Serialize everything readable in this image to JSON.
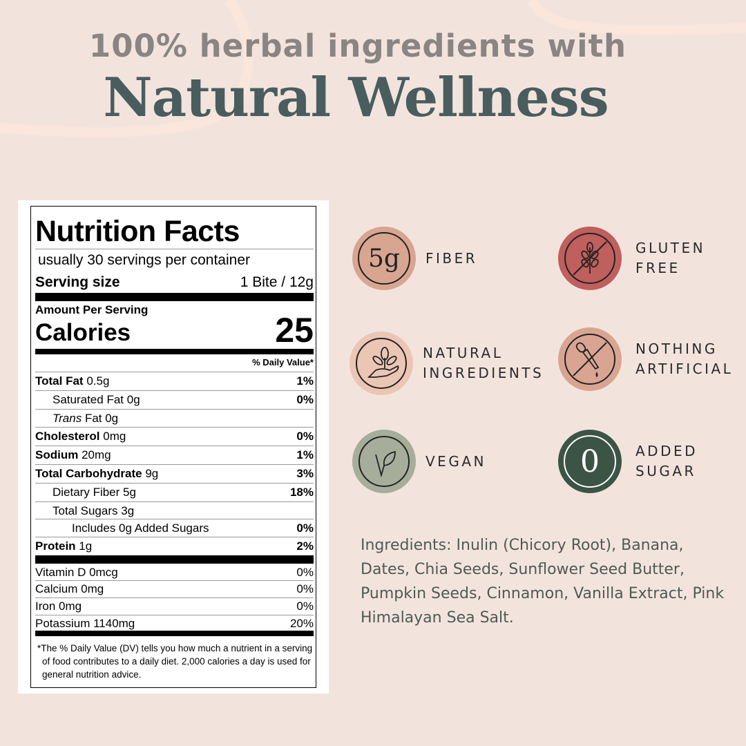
{
  "headline": {
    "line1": "100% herbal ingredients with",
    "line2": "Natural Wellness"
  },
  "nutrition": {
    "title": "Nutrition Facts",
    "servings": "usually 30 servings per container",
    "serving_size_label": "Serving size",
    "serving_size_value": "1 Bite / 12g",
    "amount_per_serving": "Amount Per Serving",
    "calories_label": "Calories",
    "calories_value": "25",
    "dv_header": "% Daily Value*",
    "rows": [
      {
        "label": "Total Fat",
        "amount": "0.5g",
        "dv": "1%"
      },
      {
        "label": "Saturated Fat",
        "amount": "0g",
        "dv": "0%"
      },
      {
        "label": "Trans",
        "amount": "Fat 0g",
        "dv": ""
      },
      {
        "label": "Cholesterol",
        "amount": "0mg",
        "dv": "0%"
      },
      {
        "label": "Sodium",
        "amount": "20mg",
        "dv": "1%"
      },
      {
        "label": "Total Carbohydrate",
        "amount": "9g",
        "dv": "3%"
      },
      {
        "label": "Dietary Fiber",
        "amount": "5g",
        "dv": "18%"
      },
      {
        "label": "Total Sugars",
        "amount": "3g",
        "dv": ""
      },
      {
        "label": "Includes 0g Added Sugars",
        "amount": "",
        "dv": "0%"
      },
      {
        "label": "Protein",
        "amount": "1g",
        "dv": "2%"
      }
    ],
    "vitamins": [
      {
        "label": "Vitamin D 0mcg",
        "dv": "0%"
      },
      {
        "label": "Calcium 0mg",
        "dv": "0%"
      },
      {
        "label": "Iron 0mg",
        "dv": "0%"
      },
      {
        "label": "Potassium 1140mg",
        "dv": "20%"
      }
    ],
    "footnote": "The % Daily Value (DV) tells you how much a nutrient in a serving of food contributes to a daily diet. 2,000 calories a day is used for general nutrition advice.",
    "footnote_mark": "*"
  },
  "features": [
    {
      "icon": "5g-text-icon",
      "badge": "5g",
      "line1": "FIBER",
      "line2": "",
      "color": "#d8a591"
    },
    {
      "icon": "no-wheat-icon",
      "badge": "",
      "line1": "GLUTEN",
      "line2": "FREE",
      "color": "#bf5f5e"
    },
    {
      "icon": "hand-plant-icon",
      "badge": "",
      "line1": "NATURAL",
      "line2": "INGREDIENTS",
      "color": "#ebc6b4"
    },
    {
      "icon": "no-dropper-icon",
      "badge": "",
      "line1": "NOTHING",
      "line2": "ARTIFICIAL",
      "color": "#d9a592"
    },
    {
      "icon": "leaf-icon",
      "badge": "",
      "line1": "VEGAN",
      "line2": "",
      "color": "#a6ae9b"
    },
    {
      "icon": "zero-text-icon",
      "badge": "0",
      "line1": "ADDED",
      "line2": "SUGAR",
      "color": "#3c5446"
    }
  ],
  "ingredients": "Ingredients: Inulin (Chicory Root), Banana, Dates, Chia Seeds, Sunflower Seed Butter, Pumpkin Seeds, Cinnamon, Vanilla Extract, Pink Himalayan Sea Salt."
}
